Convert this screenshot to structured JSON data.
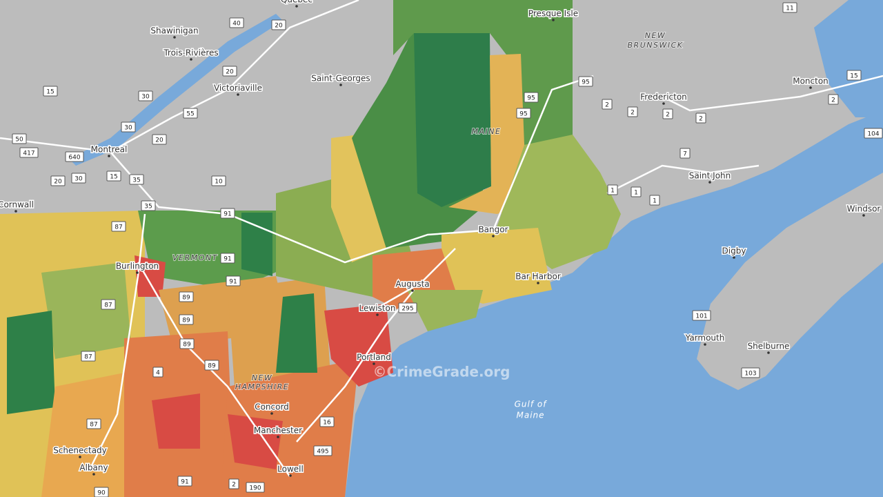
{
  "places": [
    "Québec",
    "Shawinigan",
    "Trois-Rivières",
    "Victoriaville",
    "Saint-Georges",
    "Presque Isle",
    "Montreal",
    "Fredericton",
    "Moncton",
    "Saint John",
    "Windsor",
    "Cornwall",
    "Burlington",
    "Bangor",
    "Augusta",
    "Bar Harbor",
    "Lewiston",
    "Digby",
    "Portland",
    "Yarmouth",
    "Shelburne",
    "Concord",
    "Manchester",
    "Schenectady",
    "Albany",
    "Lowell"
  ],
  "regions": [
    "NEW",
    "BRUNSWICK",
    "MAINE",
    "VERMONT",
    "NEW",
    "HAMPSHIRE",
    "Gulf of",
    "Maine"
  ],
  "shields": [
    "11",
    "40",
    "20",
    "20",
    "15",
    "30",
    "30",
    "20",
    "55",
    "50",
    "417",
    "640",
    "30",
    "20",
    "15",
    "35",
    "10",
    "35",
    "95",
    "95",
    "95",
    "2",
    "2",
    "2",
    "2",
    "15",
    "2",
    "104",
    "7",
    "1",
    "1",
    "1",
    "87",
    "91",
    "91",
    "91",
    "89",
    "89",
    "87",
    "87",
    "89",
    "89",
    "4",
    "87",
    "295",
    "16",
    "495",
    "91",
    "2",
    "190",
    "90",
    "101",
    "103"
  ],
  "watermark": "©CrimeGrade.org"
}
